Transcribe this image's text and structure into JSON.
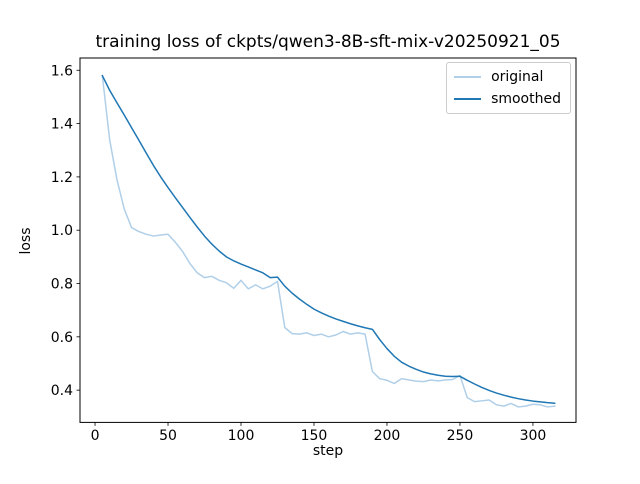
{
  "chart_data": {
    "type": "line",
    "title": "training loss of ckpts/qwen3-8B-sft-mix-v20250921_05",
    "xlabel": "step",
    "ylabel": "loss",
    "grid": false,
    "legend_position": "upper right",
    "xlim": [
      -10.3,
      329.5
    ],
    "ylim": [
      0.279,
      1.646
    ],
    "xticks": [
      0,
      50,
      100,
      150,
      200,
      250,
      300
    ],
    "yticks": [
      0.4,
      0.6,
      0.8,
      1.0,
      1.2,
      1.4,
      1.6
    ],
    "x": [
      5,
      10,
      15,
      20,
      25,
      30,
      35,
      40,
      45,
      50,
      55,
      60,
      65,
      70,
      75,
      80,
      85,
      90,
      95,
      100,
      105,
      110,
      115,
      120,
      125,
      130,
      135,
      140,
      145,
      150,
      155,
      160,
      165,
      170,
      175,
      180,
      185,
      190,
      195,
      200,
      205,
      210,
      215,
      220,
      225,
      230,
      235,
      240,
      245,
      250,
      255,
      260,
      265,
      270,
      275,
      280,
      285,
      290,
      295,
      300,
      305,
      310,
      315
    ],
    "series": [
      {
        "name": "original",
        "color": "#b0cfe8",
        "values": [
          1.58,
          1.34,
          1.19,
          1.08,
          1.01,
          0.995,
          0.985,
          0.978,
          0.982,
          0.985,
          0.955,
          0.92,
          0.875,
          0.84,
          0.822,
          0.827,
          0.812,
          0.803,
          0.782,
          0.812,
          0.78,
          0.795,
          0.78,
          0.79,
          0.808,
          0.635,
          0.612,
          0.61,
          0.615,
          0.605,
          0.61,
          0.6,
          0.607,
          0.62,
          0.61,
          0.615,
          0.61,
          0.47,
          0.443,
          0.437,
          0.425,
          0.443,
          0.438,
          0.434,
          0.432,
          0.438,
          0.435,
          0.438,
          0.44,
          0.455,
          0.372,
          0.357,
          0.36,
          0.363,
          0.345,
          0.34,
          0.35,
          0.337,
          0.34,
          0.347,
          0.345,
          0.337,
          0.34
        ]
      },
      {
        "name": "smoothed",
        "color": "#1f77b4",
        "values": [
          1.58,
          1.525,
          1.478,
          1.432,
          1.385,
          1.338,
          1.29,
          1.243,
          1.2,
          1.16,
          1.122,
          1.085,
          1.048,
          1.012,
          0.978,
          0.948,
          0.922,
          0.9,
          0.885,
          0.873,
          0.862,
          0.851,
          0.84,
          0.822,
          0.824,
          0.79,
          0.764,
          0.742,
          0.722,
          0.704,
          0.69,
          0.678,
          0.667,
          0.658,
          0.649,
          0.641,
          0.634,
          0.628,
          0.59,
          0.556,
          0.527,
          0.505,
          0.49,
          0.478,
          0.468,
          0.461,
          0.456,
          0.452,
          0.451,
          0.452,
          0.437,
          0.423,
          0.41,
          0.399,
          0.389,
          0.381,
          0.374,
          0.368,
          0.363,
          0.359,
          0.356,
          0.353,
          0.351
        ]
      }
    ]
  }
}
